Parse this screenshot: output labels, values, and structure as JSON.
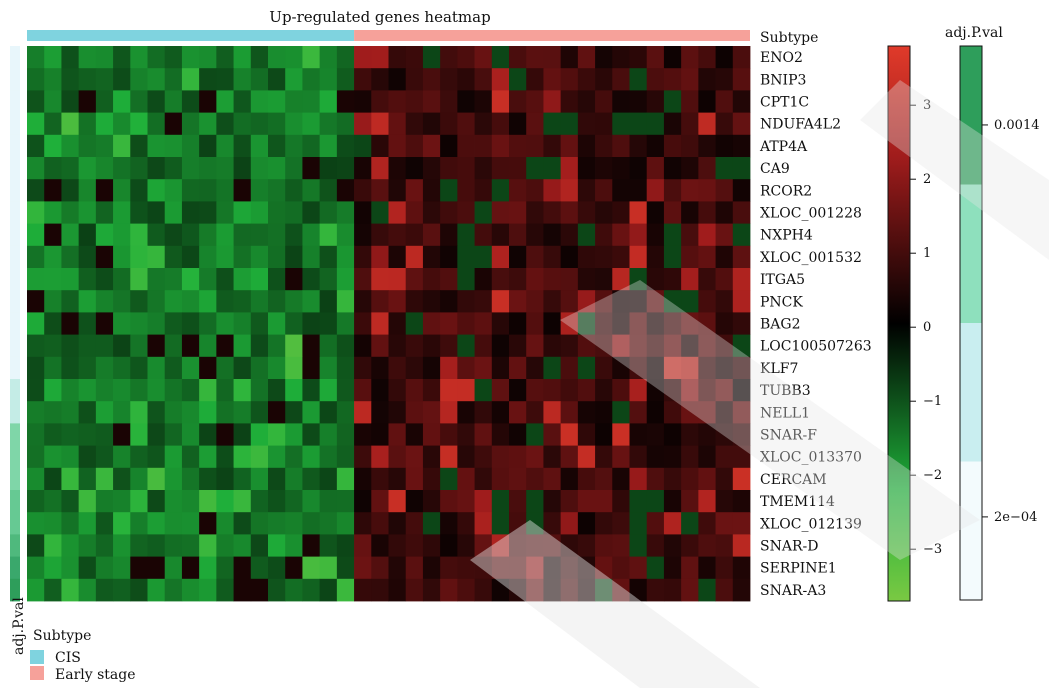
{
  "chart_data": {
    "type": "heatmap",
    "title": "Up-regulated genes heatmap",
    "top_annotation_label": "Subtype",
    "left_annotation_label": "adj.P.val",
    "genes": [
      "ENO2",
      "BNIP3",
      "CPT1C",
      "NDUFA4L2",
      "ATP4A",
      "CA9",
      "RCOR2",
      "XLOC_001228",
      "NXPH4",
      "XLOC_001532",
      "ITGA5",
      "PNCK",
      "BAG2",
      "LOC100507263",
      "KLF7",
      "TUBB3",
      "NELL1",
      "SNAR-F",
      "XLOC_013370",
      "CERCAM",
      "TMEM114",
      "XLOC_012139",
      "SNAR-D",
      "SERPINE1",
      "SNAR-A3"
    ],
    "n_samples": 42,
    "sample_subtypes": {
      "CIS": 19,
      "Early stage": 23
    },
    "color_scale": {
      "ticks": [
        3,
        2,
        1,
        0,
        -1,
        -2,
        -3
      ],
      "range": [
        -3.7,
        3.8
      ],
      "colors": {
        "low": "#7ac943",
        "mid": "#000000",
        "high": "#e03a2a"
      }
    },
    "pval_scale": {
      "ticks": [
        "0.0014",
        "2e-04"
      ],
      "bins": [
        {
          "color": "#2e9e5b"
        },
        {
          "color": "#8ee0bd"
        },
        {
          "color": "#c9eef0"
        },
        {
          "color": "#f3fbfd"
        }
      ]
    },
    "gene_pval_colors": [
      "#e8f6fb",
      "#e8f6fb",
      "#e8f6fb",
      "#e8f6fb",
      "#e8f6fb",
      "#e8f6fb",
      "#e8f6fb",
      "#e8f6fb",
      "#e8f6fb",
      "#e8f6fb",
      "#e8f6fb",
      "#e8f6fb",
      "#e8f6fb",
      "#e8f6fb",
      "#e8f6fb",
      "#c4ece6",
      "#c4ece6",
      "#7fd6a8",
      "#7fd6a8",
      "#7fd6a8",
      "#66c993",
      "#66c993",
      "#4fb97d",
      "#3aa86c",
      "#2e9e5b"
    ],
    "legend": {
      "title": "Subtype",
      "items": [
        {
          "label": "CIS",
          "color": "#7fd3df"
        },
        {
          "label": "Early stage",
          "color": "#f6a19a"
        }
      ]
    }
  }
}
